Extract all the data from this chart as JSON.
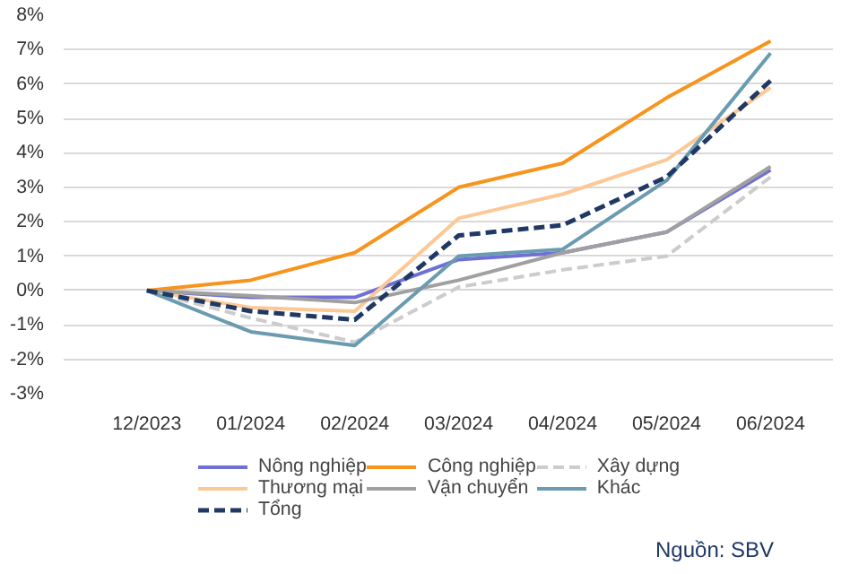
{
  "chart_data": {
    "type": "line",
    "categories": [
      "12/2023",
      "01/2024",
      "02/2024",
      "03/2024",
      "04/2024",
      "05/2024",
      "06/2024"
    ],
    "series": [
      {
        "name": "Nông nghiệp",
        "color": "#6f6fd8",
        "values": [
          0,
          -0.2,
          -0.2,
          0.9,
          1.1,
          1.7,
          3.5
        ]
      },
      {
        "name": "Công nghiệp",
        "color": "#f7941d",
        "values": [
          0,
          0.3,
          1.1,
          3.0,
          3.7,
          5.6,
          7.25
        ]
      },
      {
        "name": "Xây dựng",
        "color": "#cccccc",
        "values": [
          0,
          -0.8,
          -1.5,
          0.1,
          0.6,
          1.0,
          3.3
        ],
        "line_style": "dashed"
      },
      {
        "name": "Thương mại",
        "color": "#fcc896",
        "values": [
          0,
          -0.5,
          -0.6,
          2.1,
          2.8,
          3.8,
          5.9
        ]
      },
      {
        "name": "Vận chuyển",
        "color": "#a0a0a0",
        "values": [
          0,
          -0.15,
          -0.35,
          0.3,
          1.1,
          1.7,
          3.6
        ]
      },
      {
        "name": "Khác",
        "color": "#6a9bb0",
        "values": [
          0,
          -1.2,
          -1.6,
          1.0,
          1.2,
          3.2,
          6.9
        ]
      },
      {
        "name": "Tổng",
        "color": "#1f3864",
        "values": [
          0,
          -0.6,
          -0.85,
          1.6,
          1.9,
          3.3,
          6.1
        ],
        "line_style": "dashed"
      }
    ],
    "ylim": [
      -3,
      8
    ],
    "yticks": [
      {
        "value": -3,
        "label": "-3%"
      },
      {
        "value": -2,
        "label": "-2%"
      },
      {
        "value": -1,
        "label": "-1%"
      },
      {
        "value": 0,
        "label": "0%"
      },
      {
        "value": 1,
        "label": "1%"
      },
      {
        "value": 2,
        "label": "2%"
      },
      {
        "value": 3,
        "label": "3%"
      },
      {
        "value": 4,
        "label": "4%"
      },
      {
        "value": 5,
        "label": "5%"
      },
      {
        "value": 6,
        "label": "6%"
      },
      {
        "value": 7,
        "label": "7%"
      },
      {
        "value": 8,
        "label": "8%"
      }
    ],
    "grid": "y",
    "legend": "bottom",
    "line_style": "solid",
    "marker": "none",
    "annotations": [
      "Nguồn: SBV"
    ]
  }
}
